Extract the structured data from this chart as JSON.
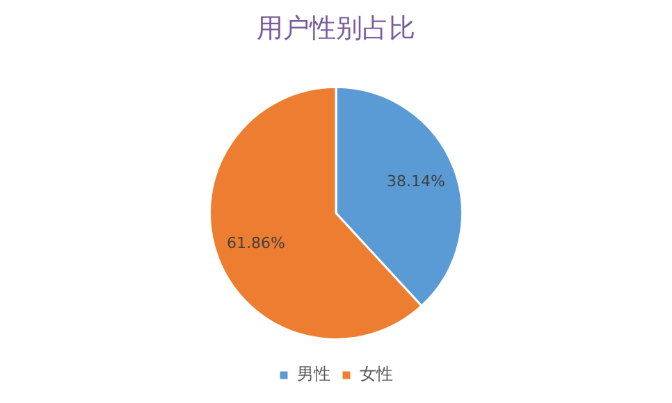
{
  "chart_data": {
    "type": "pie",
    "title": "用户性别占比",
    "categories": [
      "男性",
      "女性"
    ],
    "values": [
      38.14,
      61.86
    ],
    "colors": [
      "#5b9bd5",
      "#ed7d31"
    ],
    "value_labels": [
      "38.14%",
      "61.86%"
    ],
    "legend": "bottom"
  }
}
